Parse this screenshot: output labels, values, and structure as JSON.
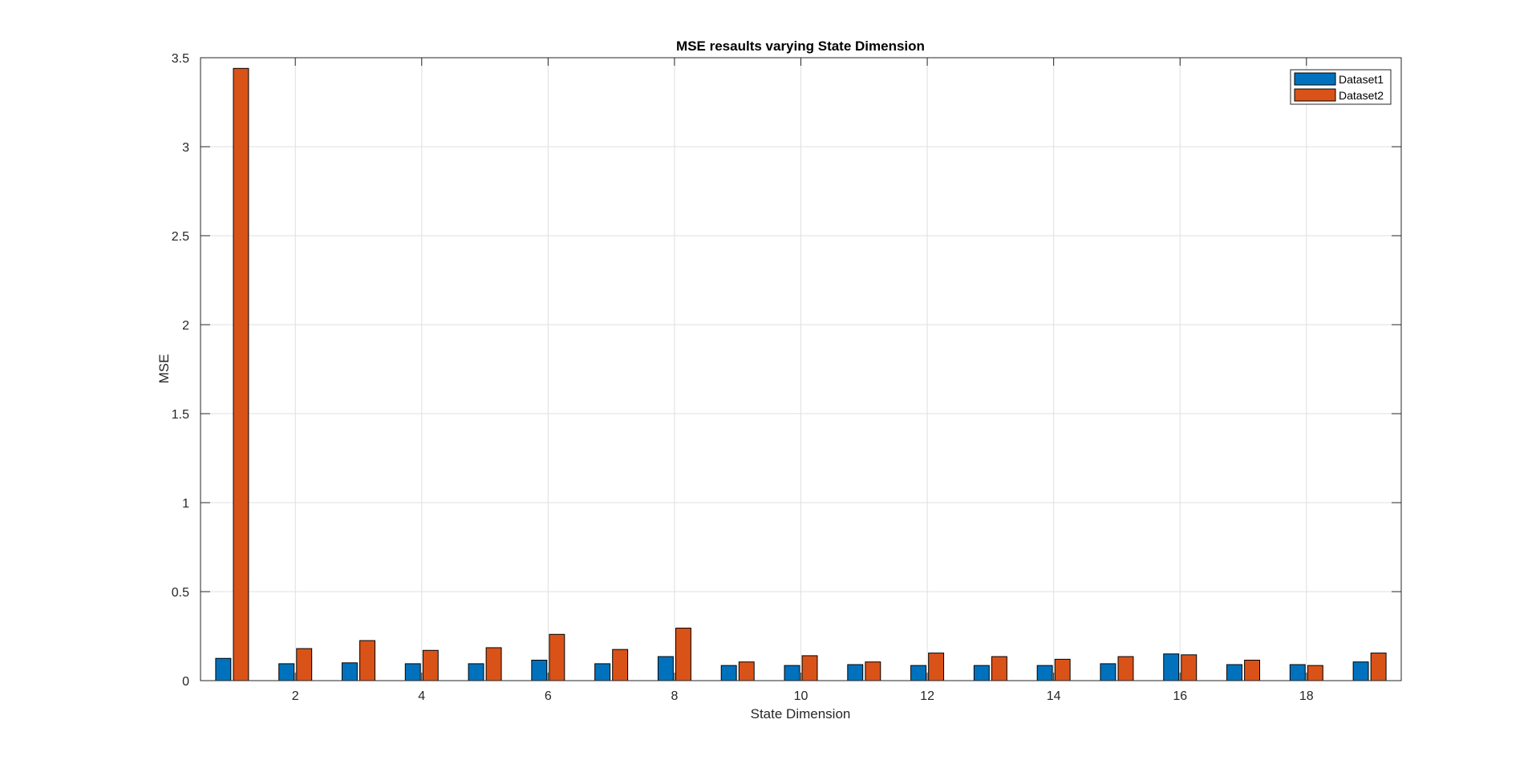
{
  "chart_data": {
    "type": "bar",
    "title": "MSE resaults varying State Dimension",
    "xlabel": "State Dimension",
    "ylabel": "MSE",
    "x": [
      1,
      2,
      3,
      4,
      5,
      6,
      7,
      8,
      9,
      10,
      11,
      12,
      13,
      14,
      15,
      16,
      17,
      18,
      19
    ],
    "xticks": [
      "2",
      "4",
      "6",
      "8",
      "10",
      "12",
      "14",
      "16",
      "18"
    ],
    "xtick_values": [
      2,
      4,
      6,
      8,
      10,
      12,
      14,
      16,
      18
    ],
    "yticks": [
      "0",
      "0.5",
      "1",
      "1.5",
      "2",
      "2.5",
      "3",
      "3.5"
    ],
    "ytick_values": [
      0,
      0.5,
      1,
      1.5,
      2,
      2.5,
      3,
      3.5
    ],
    "xlim": [
      0.5,
      19.5
    ],
    "ylim": [
      0,
      3.5
    ],
    "grid": true,
    "legend_position": "top-right",
    "series": [
      {
        "name": "Dataset1",
        "color": "#0072BD",
        "values": [
          0.125,
          0.095,
          0.1,
          0.095,
          0.095,
          0.115,
          0.095,
          0.135,
          0.085,
          0.085,
          0.09,
          0.085,
          0.085,
          0.085,
          0.095,
          0.15,
          0.09,
          0.09,
          0.105
        ]
      },
      {
        "name": "Dataset2",
        "color": "#D95319",
        "values": [
          3.44,
          0.18,
          0.225,
          0.17,
          0.185,
          0.26,
          0.175,
          0.295,
          0.105,
          0.14,
          0.105,
          0.155,
          0.135,
          0.12,
          0.135,
          0.145,
          0.115,
          0.085,
          0.155
        ]
      }
    ]
  }
}
